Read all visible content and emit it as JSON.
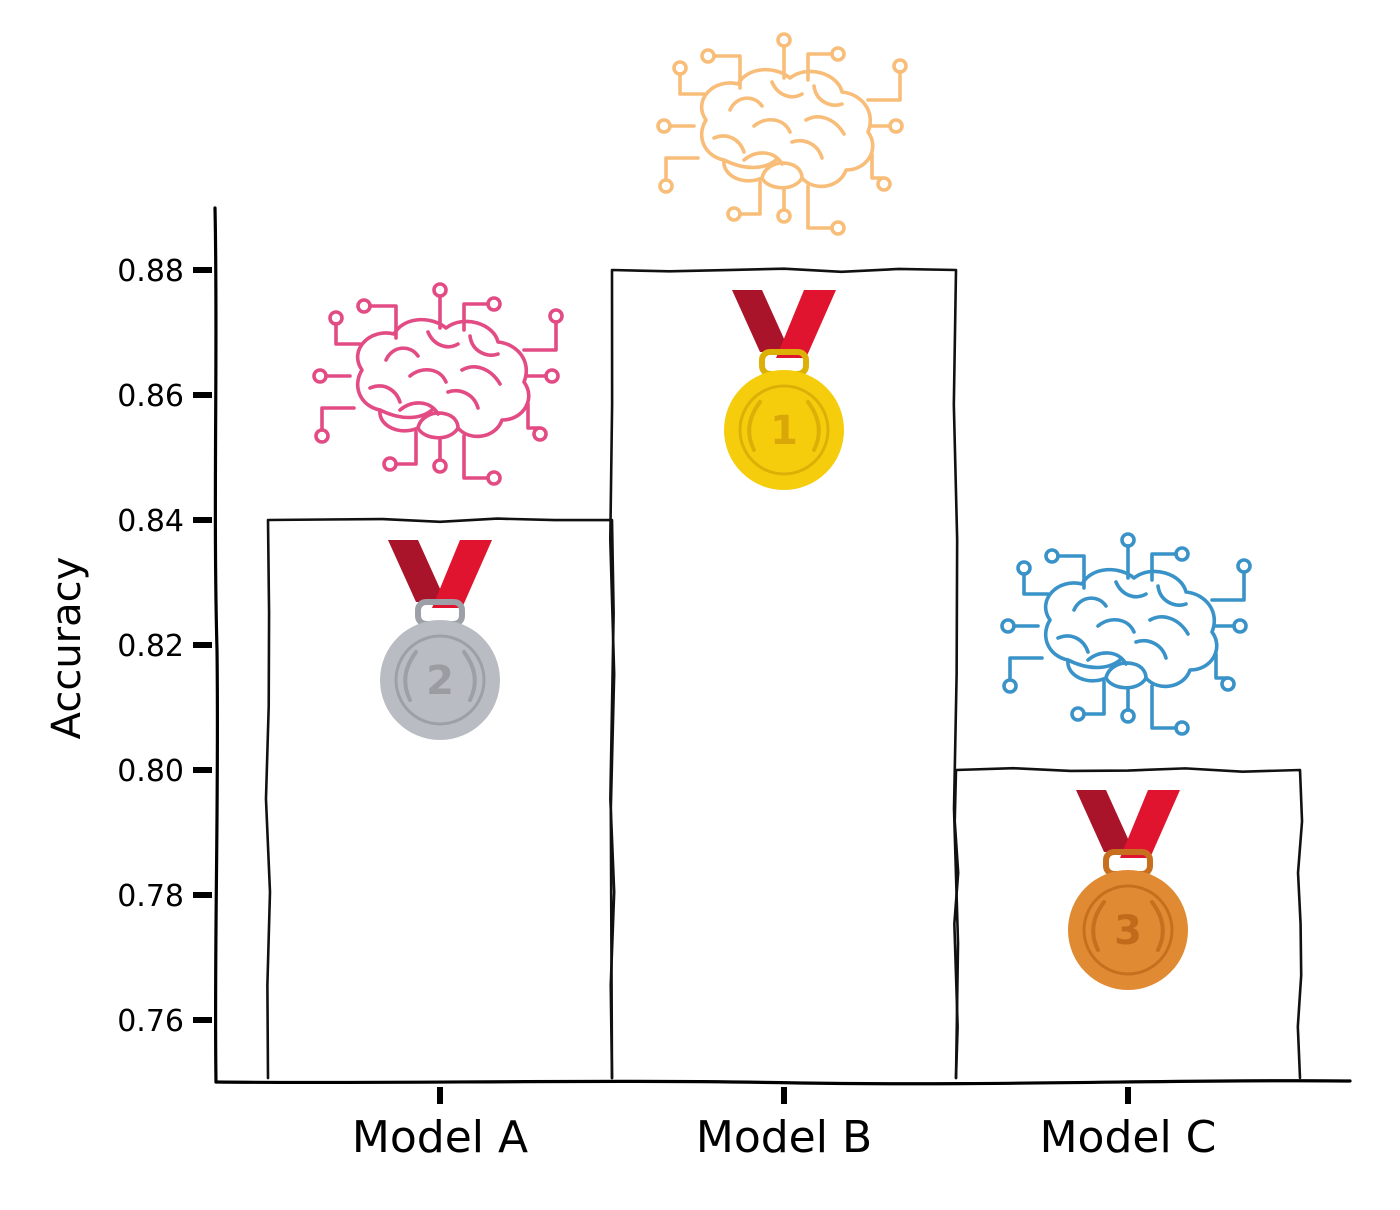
{
  "chart_data": {
    "type": "bar",
    "categories": [
      "Model A",
      "Model B",
      "Model C"
    ],
    "values": [
      0.84,
      0.88,
      0.8
    ],
    "ylabel": "Accuracy",
    "xlabel": "",
    "ylim": [
      0.75,
      0.89
    ],
    "yticks": [
      0.76,
      0.78,
      0.8,
      0.82,
      0.84,
      0.86,
      0.88
    ],
    "ytick_labels": [
      "0.76",
      "0.78",
      "0.80",
      "0.82",
      "0.84",
      "0.86",
      "0.88"
    ],
    "style": "xkcd hand-drawn",
    "grid": false,
    "ranks": [
      2,
      1,
      3
    ],
    "medals": [
      {
        "rank": "2",
        "color": "#b9bcc2",
        "ring": "#9da0a6",
        "text": "#9a9ca1"
      },
      {
        "rank": "1",
        "color": "#f5cd0d",
        "ring": "#ddb007",
        "text": "#d9a808"
      },
      {
        "rank": "3",
        "color": "#e08a33",
        "ring": "#c86f1f",
        "text": "#c26a1c"
      }
    ],
    "brain_icon_colors": [
      "#e24b83",
      "#f8bd78",
      "#3a93c8"
    ],
    "ribbon_colors": [
      "#a9142b",
      "#e0142e"
    ]
  }
}
